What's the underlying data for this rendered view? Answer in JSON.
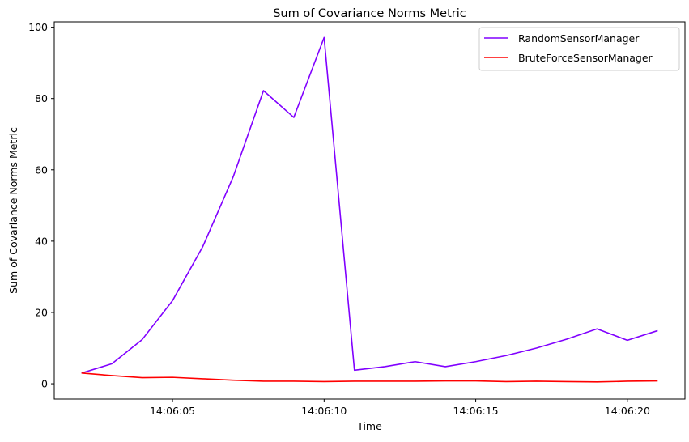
{
  "chart_data": {
    "type": "line",
    "title": "Sum of Covariance Norms Metric",
    "xlabel": "Time",
    "ylabel": "Sum of Covariance Norms Metric",
    "x": [
      "14:06:02",
      "14:06:03",
      "14:06:04",
      "14:06:05",
      "14:06:06",
      "14:06:07",
      "14:06:08",
      "14:06:09",
      "14:06:10",
      "14:06:11",
      "14:06:12",
      "14:06:13",
      "14:06:14",
      "14:06:15",
      "14:06:16",
      "14:06:17",
      "14:06:18",
      "14:06:19",
      "14:06:20",
      "14:06:21"
    ],
    "xlim": [
      "14:06:01.1",
      "14:06:21.9"
    ],
    "ylim": [
      -4.3,
      101.5
    ],
    "x_ticks": [
      "14:06:05",
      "14:06:10",
      "14:06:15",
      "14:06:20"
    ],
    "y_ticks": [
      0,
      20,
      40,
      60,
      80,
      100
    ],
    "grid": false,
    "legend_position": "top-right",
    "series": [
      {
        "name": "RandomSensorManager",
        "color": "#8000ff",
        "values": [
          3.0,
          5.6,
          12.4,
          23.3,
          38.5,
          58.0,
          82.2,
          74.7,
          97.1,
          3.8,
          4.8,
          6.2,
          4.8,
          6.2,
          7.9,
          10.0,
          12.5,
          15.4,
          12.2,
          14.9
        ]
      },
      {
        "name": "BruteForceSensorManager",
        "color": "#ff0000",
        "values": [
          3.0,
          2.3,
          1.7,
          1.8,
          1.4,
          1.0,
          0.7,
          0.7,
          0.6,
          0.7,
          0.7,
          0.7,
          0.8,
          0.8,
          0.6,
          0.7,
          0.6,
          0.5,
          0.7,
          0.8
        ]
      }
    ]
  }
}
